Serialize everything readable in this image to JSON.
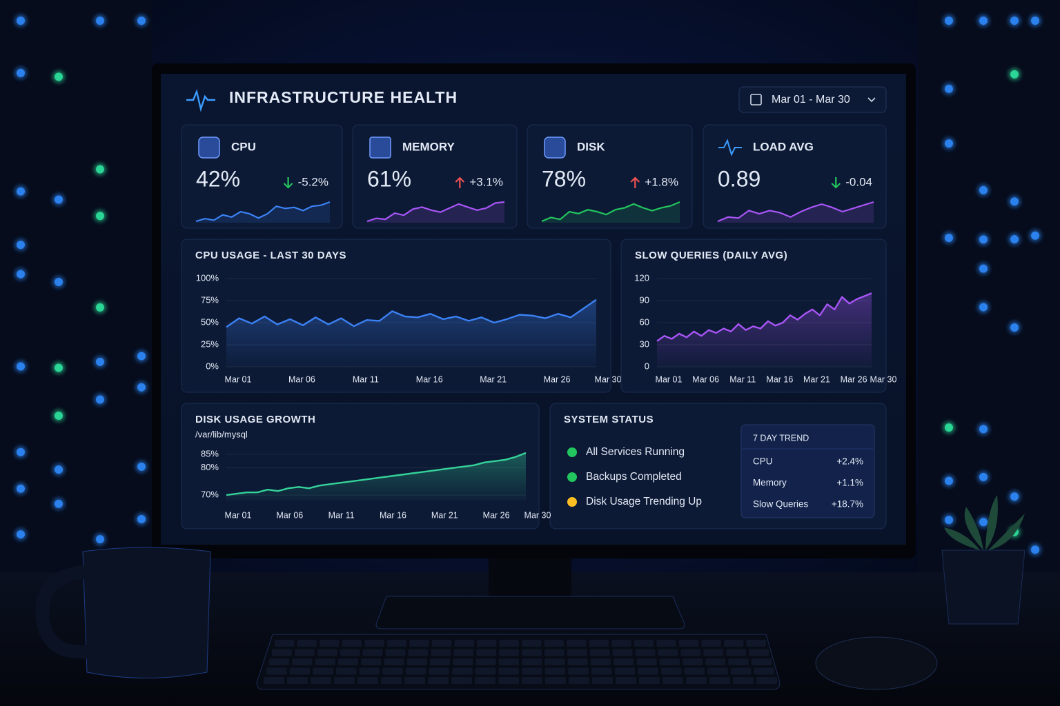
{
  "header": {
    "title": "INFRASTRUCTURE HEALTH",
    "date_range": "Mar 01 - Mar 30"
  },
  "kpis": [
    {
      "label": "CPU",
      "value": "42%",
      "change": "-5.2%",
      "direction": "down",
      "change_color": "#22c55e",
      "color": "#3b82f6",
      "trend": [
        3,
        3.5,
        3.2,
        4.2,
        3.8,
        4.8,
        4.4,
        3.6,
        4.4,
        5.8,
        5.4,
        5.6,
        5.0,
        5.8,
        6.0,
        6.6
      ]
    },
    {
      "label": "MEMORY",
      "value": "61%",
      "change": "+3.1%",
      "direction": "up",
      "change_color": "#f05252",
      "color": "#a855f7",
      "trend": [
        3,
        3.6,
        3.4,
        4.6,
        4.2,
        5.4,
        5.8,
        5.2,
        4.8,
        5.6,
        6.4,
        5.8,
        5.2,
        5.6,
        6.6,
        6.8
      ]
    },
    {
      "label": "DISK",
      "value": "78%",
      "change": "+1.8%",
      "direction": "up",
      "change_color": "#f05252",
      "color": "#22c55e",
      "trend": [
        3,
        3.8,
        3.4,
        5.0,
        4.6,
        5.4,
        5.0,
        4.4,
        5.4,
        5.8,
        6.6,
        5.8,
        5.2,
        5.8,
        6.2,
        7.0
      ]
    },
    {
      "label": "LOAD AVG",
      "value": "0.89",
      "change": "-0.04",
      "direction": "down",
      "change_color": "#22c55e",
      "color": "#a855f7",
      "trend": [
        3,
        3.8,
        3.6,
        5.0,
        4.4,
        5.0,
        4.6,
        3.8,
        4.8,
        5.6,
        6.2,
        5.6,
        4.8,
        5.4,
        6.0,
        6.6
      ]
    }
  ],
  "chart_data": [
    {
      "type": "line",
      "title": "CPU USAGE - LAST 30 DAYS",
      "color": "#3b82f6",
      "grid": true,
      "categories": [
        "Mar 01",
        null,
        null,
        null,
        null,
        "Mar 06",
        null,
        null,
        null,
        null,
        "Mar 11",
        null,
        null,
        null,
        null,
        "Mar 16",
        null,
        null,
        null,
        null,
        "Mar 21",
        null,
        null,
        null,
        null,
        "Mar 26",
        null,
        null,
        null,
        "Mar 30"
      ],
      "values": [
        45,
        55,
        49,
        57,
        48,
        54,
        47,
        56,
        48,
        55,
        46,
        53,
        52,
        63,
        57,
        56,
        60,
        54,
        57,
        52,
        56,
        50,
        54,
        59,
        58,
        55,
        60,
        56,
        66,
        76
      ],
      "ylim": [
        0,
        100
      ],
      "yticks": [
        {
          "value": 0,
          "label": "0%"
        },
        {
          "value": 25,
          "label": "25%"
        },
        {
          "value": 50,
          "label": "50%"
        },
        {
          "value": 75,
          "label": "75%"
        },
        {
          "value": 100,
          "label": "100%"
        }
      ]
    },
    {
      "type": "line",
      "title": "SLOW QUERIES (DAILY AVG)",
      "color": "#a855f7",
      "grid": true,
      "categories": [
        "Mar 01",
        null,
        null,
        null,
        null,
        "Mar 06",
        null,
        null,
        null,
        null,
        "Mar 11",
        null,
        null,
        null,
        null,
        "Mar 16",
        null,
        null,
        null,
        null,
        "Mar 21",
        null,
        null,
        null,
        null,
        "Mar 26",
        null,
        null,
        null,
        "Mar 30"
      ],
      "values": [
        35,
        42,
        38,
        45,
        40,
        48,
        42,
        50,
        46,
        52,
        48,
        58,
        50,
        55,
        52,
        62,
        56,
        60,
        70,
        64,
        72,
        78,
        70,
        85,
        78,
        95,
        86,
        92,
        96,
        100
      ],
      "ylim": [
        0,
        120
      ],
      "yticks": [
        0,
        30,
        60,
        90,
        120
      ]
    },
    {
      "type": "line",
      "title": "DISK USAGE GROWTH",
      "subtitle": "/var/lib/mysql",
      "color": "#34d399",
      "grid": true,
      "categories": [
        "Mar 01",
        null,
        null,
        null,
        null,
        "Mar 06",
        null,
        null,
        null,
        null,
        "Mar 11",
        null,
        null,
        null,
        null,
        "Mar 16",
        null,
        null,
        null,
        null,
        "Mar 21",
        null,
        null,
        null,
        null,
        "Mar 26",
        null,
        null,
        null,
        "Mar 30"
      ],
      "values": [
        70,
        70.5,
        71,
        71,
        72,
        71.5,
        72.5,
        73,
        72.5,
        73.5,
        74,
        74.5,
        75,
        75.5,
        76,
        76.5,
        77,
        77.5,
        78,
        78.5,
        79,
        79.5,
        80,
        80.5,
        81,
        82,
        82.5,
        83,
        84,
        85.5
      ],
      "ylim": [
        68,
        87
      ],
      "yticks": [
        {
          "value": 70,
          "label": "70%"
        },
        {
          "value": 80,
          "label": "80%"
        },
        {
          "value": 85,
          "label": "85%"
        }
      ]
    }
  ],
  "status": {
    "title": "SYSTEM STATUS",
    "items": [
      {
        "text": "All Services Running",
        "color": "#22c55e"
      },
      {
        "text": "Backups Completed",
        "color": "#22c55e"
      },
      {
        "text": "Disk Usage Trending Up",
        "color": "#fbbf24"
      }
    ]
  },
  "trend": {
    "title": "7 DAY TREND",
    "value_color": "#f05252",
    "rows": [
      {
        "label": "CPU",
        "value": "+2.4%"
      },
      {
        "label": "Memory",
        "value": "+1.1%"
      },
      {
        "label": "Slow Queries",
        "value": "+18.7%"
      }
    ]
  }
}
